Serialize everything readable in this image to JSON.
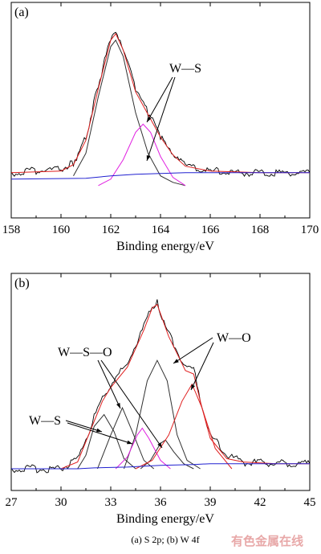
{
  "colors": {
    "raw": "#000000",
    "fit_envelope": "#e02020",
    "component_ws": "#e020e0",
    "component_wso": "#e02020",
    "component_other": "#303030",
    "background": "#2020d0",
    "watermark": "#e8a8a8"
  },
  "caption": "(a) S 2p; (b) W 4f",
  "watermark": "有色金属在线",
  "chart_data": [
    {
      "panel_label": "(a)",
      "type": "line",
      "title": "",
      "xlabel": "Binding energy/eV",
      "ylabel": "",
      "xlim": [
        158,
        170
      ],
      "x_ticks": [
        "158",
        "160",
        "162",
        "164",
        "166",
        "168",
        "170"
      ],
      "grid": false,
      "annotations": [
        {
          "text": "W—S",
          "points_to_x": [
            163.3,
            163.6
          ]
        }
      ],
      "series": [
        {
          "role": "raw",
          "x": [
            158,
            159,
            160,
            160.5,
            161,
            161.5,
            162,
            162.2,
            162.5,
            163,
            163.5,
            164,
            164.5,
            165,
            166,
            167,
            168,
            170
          ],
          "y": [
            0.08,
            0.09,
            0.1,
            0.14,
            0.3,
            0.62,
            0.92,
            0.97,
            0.86,
            0.6,
            0.45,
            0.3,
            0.18,
            0.12,
            0.09,
            0.08,
            0.08,
            0.08
          ]
        },
        {
          "role": "envelope",
          "x": [
            158,
            160,
            160.5,
            161,
            161.5,
            162,
            162.2,
            162.5,
            163,
            163.5,
            164,
            164.5,
            165,
            166,
            168,
            170
          ],
          "y": [
            0.08,
            0.09,
            0.13,
            0.28,
            0.6,
            0.9,
            0.94,
            0.84,
            0.58,
            0.44,
            0.3,
            0.19,
            0.12,
            0.09,
            0.08,
            0.08
          ]
        },
        {
          "role": "component",
          "x": [
            160.5,
            161,
            161.5,
            162,
            162.2,
            162.5,
            163,
            163.5,
            164,
            164.5,
            165
          ],
          "y": [
            0.06,
            0.2,
            0.55,
            0.86,
            0.9,
            0.8,
            0.45,
            0.2,
            0.06,
            0.02,
            0.0
          ]
        },
        {
          "role": "ws",
          "x": [
            161.5,
            162,
            162.5,
            163,
            163.3,
            163.6,
            164,
            164.5,
            165
          ],
          "y": [
            0.0,
            0.04,
            0.16,
            0.33,
            0.38,
            0.33,
            0.18,
            0.05,
            0.0
          ]
        },
        {
          "role": "background",
          "x": [
            158,
            161,
            162,
            163,
            164,
            165,
            170
          ],
          "y": [
            0.04,
            0.045,
            0.06,
            0.07,
            0.075,
            0.08,
            0.08
          ]
        }
      ]
    },
    {
      "panel_label": "(b)",
      "type": "line",
      "title": "",
      "xlabel": "Binding energy/eV",
      "ylabel": "",
      "xlim": [
        27,
        45
      ],
      "x_ticks": [
        "27",
        "30",
        "33",
        "36",
        "39",
        "42",
        "45"
      ],
      "grid": false,
      "annotations": [
        {
          "text": "W—S—O",
          "points_to_x": [
            33.7,
            36.3
          ]
        },
        {
          "text": "W—O",
          "points_to_x": [
            35.8,
            37.9
          ]
        },
        {
          "text": "W—S",
          "points_to_x": [
            32.6,
            34.9
          ]
        }
      ],
      "series": [
        {
          "role": "raw",
          "x": [
            27,
            30,
            31,
            32,
            32.5,
            33,
            34,
            35,
            35.5,
            35.8,
            36.5,
            37,
            37.5,
            38,
            38.5,
            39,
            40,
            41,
            43,
            45
          ],
          "y": [
            0.0,
            0.0,
            0.05,
            0.3,
            0.42,
            0.5,
            0.62,
            0.84,
            0.96,
            0.98,
            0.8,
            0.7,
            0.6,
            0.58,
            0.38,
            0.2,
            0.08,
            0.04,
            0.03,
            0.03
          ]
        },
        {
          "role": "envelope",
          "x": [
            27,
            30,
            31,
            32,
            32.5,
            33,
            34,
            35,
            35.5,
            35.8,
            36.5,
            37,
            37.5,
            38,
            38.5,
            39,
            40,
            41,
            43,
            45
          ],
          "y": [
            0.0,
            0.0,
            0.04,
            0.28,
            0.4,
            0.48,
            0.6,
            0.82,
            0.95,
            0.97,
            0.78,
            0.68,
            0.58,
            0.56,
            0.36,
            0.18,
            0.06,
            0.04,
            0.03,
            0.03
          ]
        },
        {
          "role": "component",
          "x": [
            31,
            31.5,
            32,
            32.6,
            33.2,
            33.8,
            34.5
          ],
          "y": [
            0.0,
            0.08,
            0.25,
            0.32,
            0.22,
            0.06,
            0.0
          ]
        },
        {
          "role": "component",
          "x": [
            32.2,
            33,
            33.7,
            34.3,
            35,
            35.6
          ],
          "y": [
            0.0,
            0.2,
            0.36,
            0.22,
            0.05,
            0.0
          ]
        },
        {
          "role": "component",
          "x": [
            33.8,
            34.5,
            35.2,
            35.8,
            36.4,
            37,
            37.6,
            38.4
          ],
          "y": [
            0.0,
            0.2,
            0.52,
            0.64,
            0.52,
            0.2,
            0.05,
            0.0
          ]
        },
        {
          "role": "component",
          "x": [
            34.8,
            35.4,
            36,
            36.3,
            36.8,
            37.4,
            38
          ],
          "y": [
            0.0,
            0.05,
            0.15,
            0.17,
            0.1,
            0.03,
            0.0
          ]
        },
        {
          "role": "ws",
          "x": [
            33.3,
            34,
            34.6,
            34.9,
            35.3,
            36,
            36.6
          ],
          "y": [
            0.0,
            0.07,
            0.2,
            0.24,
            0.18,
            0.05,
            0.0
          ]
        },
        {
          "role": "wso",
          "x": [
            34.5,
            35.5,
            36.5,
            37.3,
            37.9,
            38.5,
            39.3,
            40.3
          ],
          "y": [
            0.0,
            0.05,
            0.2,
            0.4,
            0.5,
            0.36,
            0.12,
            0.0
          ]
        },
        {
          "role": "background",
          "x": [
            27,
            31,
            32,
            34,
            36,
            38,
            39,
            40,
            45
          ],
          "y": [
            0.0,
            0.0,
            0.005,
            0.01,
            0.02,
            0.025,
            0.03,
            0.03,
            0.03
          ]
        }
      ]
    }
  ]
}
